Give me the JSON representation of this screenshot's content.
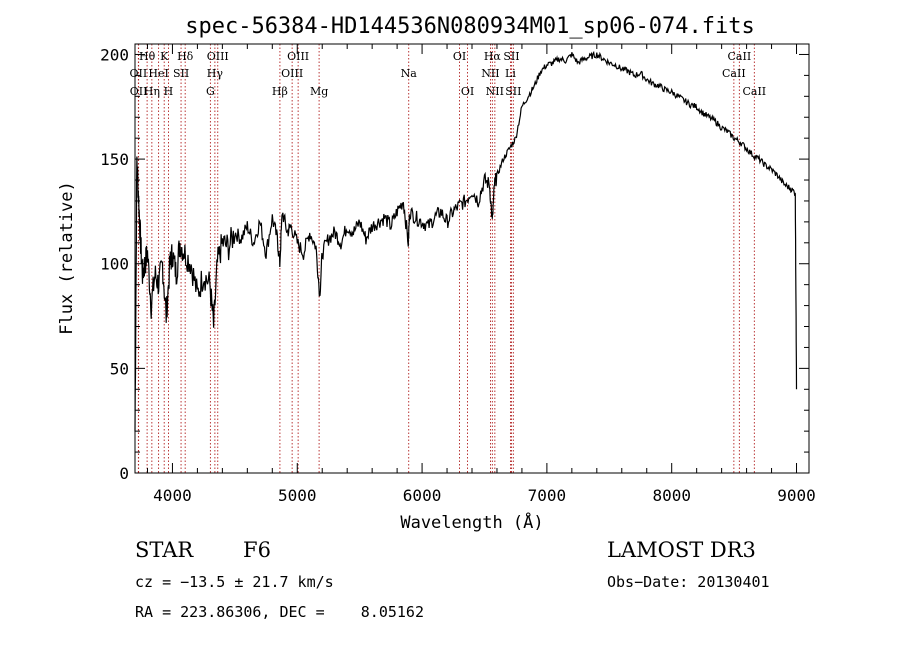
{
  "chart_data": {
    "type": "line",
    "title": "spec-56384-HD144536N080934M01_sp06-074.fits",
    "xlabel": "Wavelength (Å)",
    "ylabel": "Flux (relative)",
    "xlim": [
      3700,
      9100
    ],
    "ylim": [
      0,
      205
    ],
    "xticks": [
      4000,
      5000,
      6000,
      7000,
      8000,
      9000
    ],
    "yticks": [
      0,
      50,
      100,
      150,
      200
    ],
    "series": [
      {
        "name": "flux",
        "x": [
          3700,
          3715,
          3730,
          3745,
          3760,
          3780,
          3800,
          3830,
          3860,
          3890,
          3920,
          3950,
          3980,
          4000,
          4030,
          4060,
          4100,
          4150,
          4200,
          4250,
          4300,
          4330,
          4360,
          4400,
          4450,
          4500,
          4550,
          4600,
          4650,
          4700,
          4750,
          4800,
          4840,
          4860,
          4880,
          4920,
          4950,
          5000,
          5050,
          5100,
          5150,
          5180,
          5200,
          5250,
          5300,
          5350,
          5400,
          5450,
          5500,
          5550,
          5600,
          5650,
          5700,
          5750,
          5800,
          5850,
          5890,
          5900,
          5950,
          6000,
          6050,
          6100,
          6150,
          6200,
          6250,
          6300,
          6350,
          6400,
          6450,
          6500,
          6540,
          6563,
          6580,
          6600,
          6650,
          6700,
          6750,
          6800,
          6850,
          6900,
          6950,
          7000,
          7050,
          7100,
          7150,
          7200,
          7250,
          7300,
          7350,
          7400,
          7450,
          7500,
          7550,
          7600,
          7650,
          7700,
          7750,
          7800,
          7850,
          7900,
          7950,
          8000,
          8050,
          8100,
          8150,
          8200,
          8250,
          8300,
          8350,
          8400,
          8450,
          8500,
          8550,
          8600,
          8650,
          8700,
          8750,
          8800,
          8850,
          8900,
          8950,
          8990,
          9000
        ],
        "y": [
          20,
          150,
          130,
          110,
          95,
          100,
          105,
          80,
          95,
          90,
          100,
          75,
          100,
          105,
          95,
          110,
          105,
          100,
          85,
          95,
          90,
          70,
          100,
          110,
          108,
          115,
          112,
          118,
          110,
          120,
          105,
          122,
          112,
          100,
          125,
          115,
          118,
          110,
          105,
          115,
          108,
          85,
          105,
          112,
          115,
          110,
          118,
          115,
          120,
          112,
          118,
          120,
          122,
          118,
          125,
          130,
          110,
          125,
          122,
          120,
          118,
          122,
          125,
          120,
          125,
          128,
          130,
          135,
          130,
          140,
          138,
          120,
          138,
          142,
          150,
          155,
          160,
          175,
          180,
          185,
          192,
          195,
          196,
          198,
          197,
          200,
          196,
          198,
          199,
          200,
          198,
          196,
          195,
          193,
          192,
          190,
          191,
          188,
          186,
          185,
          183,
          182,
          180,
          178,
          176,
          175,
          172,
          170,
          168,
          165,
          163,
          160,
          158,
          155,
          152,
          150,
          147,
          145,
          142,
          138,
          136,
          134,
          40
        ]
      }
    ],
    "lines": [
      {
        "label": "Hθ",
        "wave": 3797,
        "row": 1
      },
      {
        "label": "OII",
        "wave": 3727,
        "row": 2
      },
      {
        "label": "OII",
        "wave": 3729,
        "row": 3
      },
      {
        "label": "K",
        "wave": 3934,
        "row": 1
      },
      {
        "label": "HeI",
        "wave": 3889,
        "row": 2
      },
      {
        "label": "Hη",
        "wave": 3835,
        "row": 3
      },
      {
        "label": "H",
        "wave": 3968,
        "row": 3
      },
      {
        "label": "SII",
        "wave": 4069,
        "row": 2
      },
      {
        "label": "Hδ",
        "wave": 4102,
        "row": 1
      },
      {
        "label": "OIII",
        "wave": 4363,
        "row": 1
      },
      {
        "label": "Hγ",
        "wave": 4340,
        "row": 2
      },
      {
        "label": "G",
        "wave": 4304,
        "row": 3
      },
      {
        "label": "Hβ",
        "wave": 4861,
        "row": 3
      },
      {
        "label": "OIII",
        "wave": 5007,
        "row": 1
      },
      {
        "label": "OIII",
        "wave": 4959,
        "row": 2
      },
      {
        "label": "Mg",
        "wave": 5175,
        "row": 3
      },
      {
        "label": "Na",
        "wave": 5893,
        "row": 2
      },
      {
        "label": "OI",
        "wave": 6300,
        "row": 1
      },
      {
        "label": "OI",
        "wave": 6364,
        "row": 3
      },
      {
        "label": "Hα",
        "wave": 6563,
        "row": 1
      },
      {
        "label": "SII",
        "wave": 6716,
        "row": 1
      },
      {
        "label": "NII",
        "wave": 6548,
        "row": 2
      },
      {
        "label": "Li",
        "wave": 6708,
        "row": 2
      },
      {
        "label": "NII",
        "wave": 6583,
        "row": 3
      },
      {
        "label": "SII",
        "wave": 6731,
        "row": 3
      },
      {
        "label": "CaII",
        "wave": 8542,
        "row": 1
      },
      {
        "label": "CaII",
        "wave": 8498,
        "row": 2
      },
      {
        "label": "CaII",
        "wave": 8662,
        "row": 3
      }
    ]
  },
  "info": {
    "class_label": "STAR",
    "subclass": "F6",
    "survey": "LAMOST DR3",
    "cz": "cz = −13.5 ± 21.7 km/s",
    "obs_date": "Obs−Date: 20130401",
    "coords": "RA = 223.86306, DEC =    8.05162"
  },
  "colors": {
    "line_marker": "#b22222",
    "spectrum": "#000000"
  }
}
